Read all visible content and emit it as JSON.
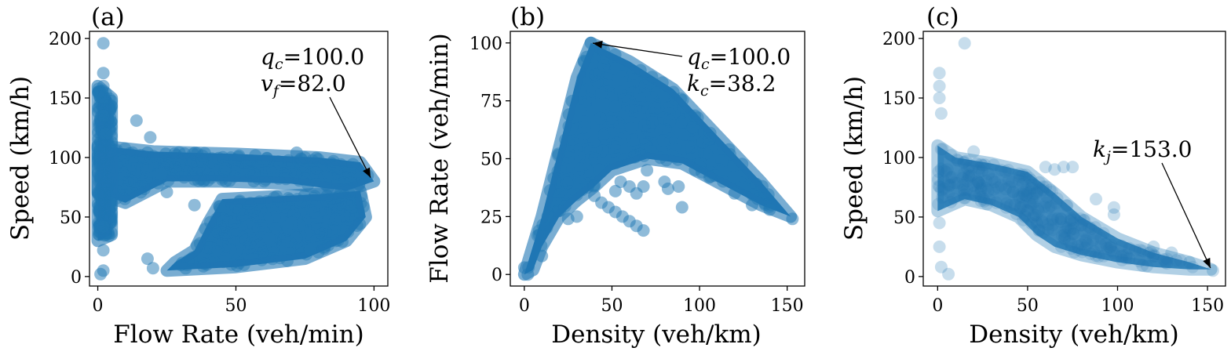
{
  "chart_data": [
    {
      "type": "scatter",
      "panel_label": "(a)",
      "title": "",
      "xlabel": "Flow Rate (veh/min)",
      "ylabel": "Speed (km/h)",
      "xlim": [
        -3,
        105
      ],
      "ylim": [
        -8,
        206
      ],
      "xticks": [
        0,
        50,
        100
      ],
      "yticks": [
        0,
        50,
        100,
        150,
        200
      ],
      "grid": false,
      "legend": "none",
      "color": "#1f77b4",
      "marker_alpha": 0.45,
      "points": [
        [
          2,
          196
        ],
        [
          2,
          171
        ],
        [
          2,
          160
        ],
        [
          2,
          150
        ],
        [
          2,
          135
        ],
        [
          3,
          120
        ],
        [
          2,
          42
        ],
        [
          2,
          22
        ],
        [
          2,
          5
        ],
        [
          1,
          2
        ],
        [
          19,
          117
        ],
        [
          14,
          131
        ],
        [
          23,
          86
        ],
        [
          35,
          60
        ],
        [
          18,
          15
        ],
        [
          20,
          7
        ],
        [
          62,
          32
        ],
        [
          70,
          45
        ],
        [
          77,
          23
        ],
        [
          72,
          104
        ],
        [
          25,
          71
        ],
        [
          44,
          59
        ]
      ],
      "regions": [
        {
          "name": "free-flow band",
          "outline": [
            [
              0,
              70
            ],
            [
              10,
              62
            ],
            [
              25,
              80
            ],
            [
              45,
              80
            ],
            [
              70,
              78
            ],
            [
              90,
              72
            ],
            [
              100,
              80
            ],
            [
              95,
              96
            ],
            [
              80,
              100
            ],
            [
              50,
              103
            ],
            [
              20,
              105
            ],
            [
              0,
              110
            ]
          ]
        },
        {
          "name": "speed spread near zero flow",
          "outline": [
            [
              0,
              30
            ],
            [
              5,
              35
            ],
            [
              5,
              150
            ],
            [
              0,
              160
            ]
          ]
        },
        {
          "name": "congested branch",
          "outline": [
            [
              25,
              5
            ],
            [
              50,
              8
            ],
            [
              75,
              15
            ],
            [
              90,
              30
            ],
            [
              97,
              50
            ],
            [
              95,
              72
            ],
            [
              85,
              70
            ],
            [
              70,
              68
            ],
            [
              45,
              65
            ],
            [
              40,
              45
            ],
            [
              35,
              22
            ],
            [
              28,
              12
            ]
          ]
        }
      ],
      "annotations": [
        {
          "lines": [
            "q_c=100.0",
            "v_f=82.0"
          ],
          "point": [
            99,
            82
          ]
        }
      ]
    },
    {
      "type": "scatter",
      "panel_label": "(b)",
      "title": "",
      "xlabel": "Density (veh/km)",
      "ylabel": "Flow Rate (veh/min)",
      "xlim": [
        -8,
        160
      ],
      "ylim": [
        -5,
        105
      ],
      "xticks": [
        0,
        50,
        100,
        150
      ],
      "yticks": [
        0,
        25,
        50,
        75,
        100
      ],
      "grid": false,
      "legend": "none",
      "color": "#1f77b4",
      "marker_alpha": 0.45,
      "points": [
        [
          38,
          100
        ],
        [
          55,
          40
        ],
        [
          52,
          36
        ],
        [
          60,
          38
        ],
        [
          64,
          35
        ],
        [
          68,
          38
        ],
        [
          70,
          45
        ],
        [
          80,
          40
        ],
        [
          82,
          37
        ],
        [
          88,
          38
        ],
        [
          90,
          29
        ],
        [
          120,
          35
        ],
        [
          130,
          30
        ],
        [
          140,
          28
        ],
        [
          153,
          24
        ],
        [
          30,
          25
        ],
        [
          25,
          24
        ],
        [
          40,
          34
        ],
        [
          44,
          31
        ],
        [
          48,
          29
        ],
        [
          52,
          27
        ],
        [
          56,
          25
        ],
        [
          60,
          23
        ],
        [
          64,
          21
        ],
        [
          68,
          19
        ],
        [
          2,
          0
        ],
        [
          0,
          3
        ],
        [
          10,
          8
        ]
      ],
      "regions": [
        {
          "name": "flow-density triangle",
          "outline": [
            [
              0,
              0
            ],
            [
              10,
              25
            ],
            [
              20,
              55
            ],
            [
              30,
              85
            ],
            [
              38,
              100
            ],
            [
              60,
              92
            ],
            [
              85,
              80
            ],
            [
              110,
              60
            ],
            [
              135,
              40
            ],
            [
              152,
              25
            ],
            [
              135,
              30
            ],
            [
              110,
              40
            ],
            [
              90,
              48
            ],
            [
              70,
              50
            ],
            [
              50,
              45
            ],
            [
              40,
              38
            ],
            [
              30,
              32
            ],
            [
              20,
              25
            ],
            [
              10,
              12
            ],
            [
              5,
              2
            ]
          ]
        }
      ],
      "annotations": [
        {
          "lines": [
            "q_c=100.0",
            "k_c=38.2"
          ],
          "point": [
            38.2,
            100
          ]
        }
      ]
    },
    {
      "type": "scatter",
      "panel_label": "(c)",
      "title": "",
      "xlabel": "Density (veh/km)",
      "ylabel": "Speed (km/h)",
      "xlim": [
        -8,
        160
      ],
      "ylim": [
        -8,
        206
      ],
      "xticks": [
        0,
        50,
        100,
        150
      ],
      "yticks": [
        0,
        50,
        100,
        150,
        200
      ],
      "grid": false,
      "legend": "none",
      "color": "#1f77b4",
      "marker_alpha": 0.18,
      "points": [
        [
          15,
          196
        ],
        [
          1,
          171
        ],
        [
          1,
          160
        ],
        [
          1,
          150
        ],
        [
          2,
          137
        ],
        [
          1,
          45
        ],
        [
          1,
          25
        ],
        [
          2,
          8
        ],
        [
          6,
          2
        ],
        [
          20,
          105
        ],
        [
          60,
          92
        ],
        [
          65,
          90
        ],
        [
          70,
          92
        ],
        [
          75,
          92
        ],
        [
          88,
          65
        ],
        [
          98,
          58
        ],
        [
          98,
          52
        ],
        [
          120,
          25
        ],
        [
          130,
          20
        ],
        [
          140,
          12
        ],
        [
          153,
          5
        ]
      ],
      "regions": [
        {
          "name": "speed-density decay",
          "outline": [
            [
              0,
              110
            ],
            [
              10,
              100
            ],
            [
              30,
              95
            ],
            [
              50,
              88
            ],
            [
              65,
              70
            ],
            [
              80,
              50
            ],
            [
              100,
              32
            ],
            [
              120,
              20
            ],
            [
              140,
              12
            ],
            [
              152,
              6
            ],
            [
              140,
              6
            ],
            [
              120,
              8
            ],
            [
              100,
              12
            ],
            [
              80,
              18
            ],
            [
              65,
              25
            ],
            [
              55,
              35
            ],
            [
              45,
              50
            ],
            [
              30,
              60
            ],
            [
              15,
              65
            ],
            [
              0,
              55
            ]
          ]
        }
      ],
      "annotations": [
        {
          "lines": [
            "k_j=153.0"
          ],
          "point": [
            152,
            6
          ]
        }
      ]
    }
  ]
}
